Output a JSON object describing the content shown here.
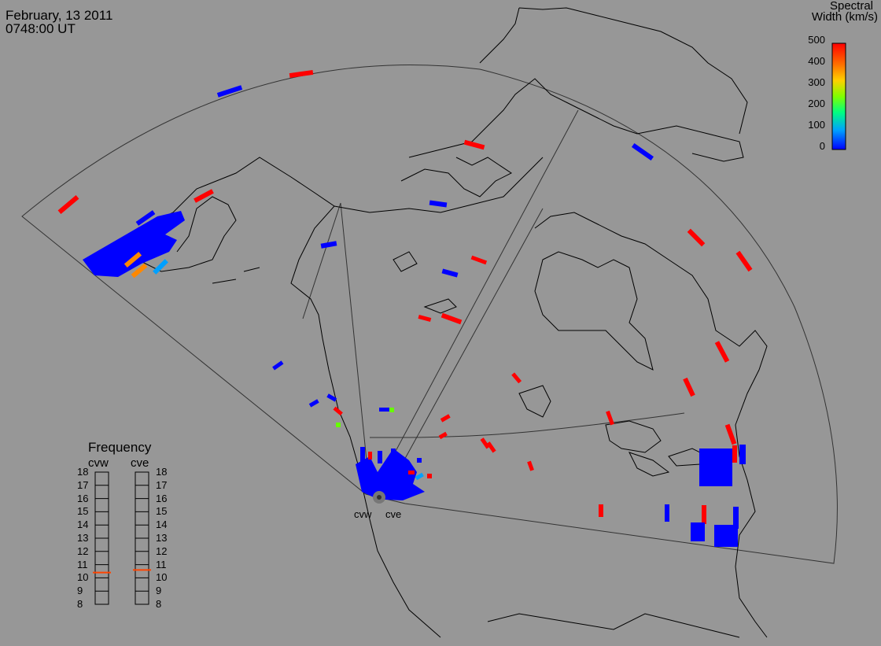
{
  "header": {
    "date": "February, 13 2011",
    "time": "0748:00 UT"
  },
  "colorbar": {
    "title_line1": "Spectral",
    "title_line2": "Width (km/s)",
    "ticks": [
      "500",
      "400",
      "300",
      "200",
      "100",
      "0"
    ],
    "range": [
      0,
      500
    ],
    "colors": [
      "#0000ff",
      "#00b4ff",
      "#00ff66",
      "#7fff00",
      "#ffd200",
      "#ff7f00",
      "#ff0000"
    ]
  },
  "radars": {
    "west": "cvw",
    "east": "cve"
  },
  "frequency_panel": {
    "title": "Frequency",
    "left_label": "cvw",
    "right_label": "cve",
    "ticks": [
      "18",
      "17",
      "16",
      "15",
      "14",
      "13",
      "12",
      "11",
      "10",
      "9",
      "8"
    ],
    "range_mhz": [
      8,
      18
    ],
    "cvw_value": 10.4,
    "cve_value": 10.6,
    "indicator_color": "#ff4400"
  },
  "map": {
    "background": "#979797",
    "coast_color": "#000000",
    "fov_color": "#333333",
    "scatter_values_kms": {
      "red_patches": 500,
      "blue_patches": 0,
      "orange_patches": 430,
      "cyan_patches": 90,
      "green_patches": 200
    }
  }
}
